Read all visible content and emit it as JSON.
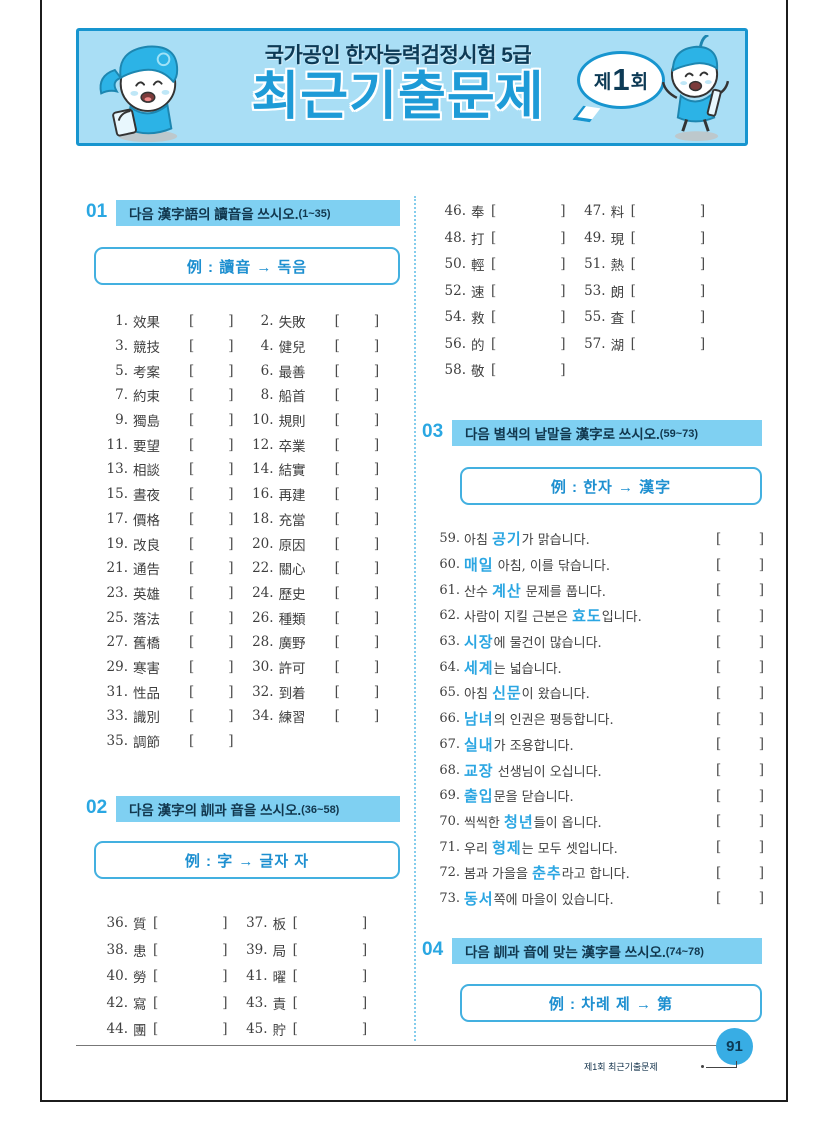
{
  "header": {
    "subtitle": "국가공인 한자능력검정시험 5급",
    "title": "최근기출문제",
    "badge": {
      "pre": "제",
      "num": "1",
      "post": "회"
    }
  },
  "icons": {
    "mascot_left": "running-student-mascot-icon",
    "mascot_right": "jumping-student-mascot-icon"
  },
  "colors": {
    "banner_bg": "#a9def5",
    "banner_border": "#1795cf",
    "title_blue": "#1e9bd7",
    "navy": "#0d3a55",
    "section_band": "#7fd0f2",
    "section_number": "#2aa7e2",
    "example_border": "#43b0e0",
    "example_text": "#1d8fd0",
    "highlight_word": "#2ba6e2",
    "page_circle": "#38ade4"
  },
  "brackets": {
    "open": "[",
    "close": "]"
  },
  "sections": [
    {
      "number": "01",
      "instruction": "다음 漢字語의 讀音을 쓰시오.",
      "range": "(1~35)",
      "example": "例 : 讀音 → 독음"
    },
    {
      "number": "02",
      "instruction": "다음 漢字의 訓과 音을 쓰시오.",
      "range": "(36~58)",
      "example": "例 : 字 → 글자 자"
    },
    {
      "number": "03",
      "instruction": "다음 별색의 낱말을 漢字로 쓰시오.",
      "range": "(59~73)",
      "example": "例 : 한자 → 漢字"
    },
    {
      "number": "04",
      "instruction": "다음 訓과 音에 맞는 漢字를 쓰시오.",
      "range": "(74~78)",
      "example": "例 : 차례 제 → 第"
    }
  ],
  "q1_items": [
    {
      "no": "1.",
      "word": "效果"
    },
    {
      "no": "2.",
      "word": "失敗"
    },
    {
      "no": "3.",
      "word": "競技"
    },
    {
      "no": "4.",
      "word": "健兒"
    },
    {
      "no": "5.",
      "word": "考案"
    },
    {
      "no": "6.",
      "word": "最善"
    },
    {
      "no": "7.",
      "word": "約束"
    },
    {
      "no": "8.",
      "word": "船首"
    },
    {
      "no": "9.",
      "word": "獨島"
    },
    {
      "no": "10.",
      "word": "規則"
    },
    {
      "no": "11.",
      "word": "要望"
    },
    {
      "no": "12.",
      "word": "卒業"
    },
    {
      "no": "13.",
      "word": "相談"
    },
    {
      "no": "14.",
      "word": "結實"
    },
    {
      "no": "15.",
      "word": "晝夜"
    },
    {
      "no": "16.",
      "word": "再建"
    },
    {
      "no": "17.",
      "word": "價格"
    },
    {
      "no": "18.",
      "word": "充當"
    },
    {
      "no": "19.",
      "word": "改良"
    },
    {
      "no": "20.",
      "word": "原因"
    },
    {
      "no": "21.",
      "word": "通告"
    },
    {
      "no": "22.",
      "word": "關心"
    },
    {
      "no": "23.",
      "word": "英雄"
    },
    {
      "no": "24.",
      "word": "歷史"
    },
    {
      "no": "25.",
      "word": "落法"
    },
    {
      "no": "26.",
      "word": "種類"
    },
    {
      "no": "27.",
      "word": "舊橋"
    },
    {
      "no": "28.",
      "word": "廣野"
    },
    {
      "no": "29.",
      "word": "寒害"
    },
    {
      "no": "30.",
      "word": "許可"
    },
    {
      "no": "31.",
      "word": "性品"
    },
    {
      "no": "32.",
      "word": "到着"
    },
    {
      "no": "33.",
      "word": "識別"
    },
    {
      "no": "34.",
      "word": "練習"
    },
    {
      "no": "35.",
      "word": "調節"
    }
  ],
  "q2_left": [
    {
      "no": "36.",
      "word": "質"
    },
    {
      "no": "37.",
      "word": "板"
    },
    {
      "no": "38.",
      "word": "患"
    },
    {
      "no": "39.",
      "word": "局"
    },
    {
      "no": "40.",
      "word": "勞"
    },
    {
      "no": "41.",
      "word": "曜"
    },
    {
      "no": "42.",
      "word": "寫"
    },
    {
      "no": "43.",
      "word": "責"
    },
    {
      "no": "44.",
      "word": "團"
    },
    {
      "no": "45.",
      "word": "貯"
    }
  ],
  "q2_right": [
    {
      "no": "46.",
      "word": "奉"
    },
    {
      "no": "47.",
      "word": "料"
    },
    {
      "no": "48.",
      "word": "打"
    },
    {
      "no": "49.",
      "word": "現"
    },
    {
      "no": "50.",
      "word": "輕"
    },
    {
      "no": "51.",
      "word": "熱"
    },
    {
      "no": "52.",
      "word": "速"
    },
    {
      "no": "53.",
      "word": "朗"
    },
    {
      "no": "54.",
      "word": "救"
    },
    {
      "no": "55.",
      "word": "査"
    },
    {
      "no": "56.",
      "word": "的"
    },
    {
      "no": "57.",
      "word": "湖"
    },
    {
      "no": "58.",
      "word": "敬"
    }
  ],
  "q3_items": [
    {
      "no": "59.",
      "pre": "아침 ",
      "word": "공기",
      "post": "가 맑습니다."
    },
    {
      "no": "60.",
      "pre": "",
      "word": "매일",
      "post": " 아침, 이를 닦습니다."
    },
    {
      "no": "61.",
      "pre": "산수 ",
      "word": "계산",
      "post": " 문제를 풉니다."
    },
    {
      "no": "62.",
      "pre": "사람이 지킬 근본은 ",
      "word": "효도",
      "post": "입니다."
    },
    {
      "no": "63.",
      "pre": "",
      "word": "시장",
      "post": "에 물건이 많습니다."
    },
    {
      "no": "64.",
      "pre": "",
      "word": "세계",
      "post": "는 넓습니다."
    },
    {
      "no": "65.",
      "pre": "아침 ",
      "word": "신문",
      "post": "이 왔습니다."
    },
    {
      "no": "66.",
      "pre": "",
      "word": "남녀",
      "post": "의 인권은 평등합니다."
    },
    {
      "no": "67.",
      "pre": "",
      "word": "실내",
      "post": "가 조용합니다."
    },
    {
      "no": "68.",
      "pre": "",
      "word": "교장",
      "post": " 선생님이 오십니다."
    },
    {
      "no": "69.",
      "pre": "",
      "word": "출입",
      "post": "문을 닫습니다."
    },
    {
      "no": "70.",
      "pre": "씩씩한 ",
      "word": "청년",
      "post": "들이 옵니다."
    },
    {
      "no": "71.",
      "pre": "우리 ",
      "word": "형제",
      "post": "는 모두 셋입니다."
    },
    {
      "no": "72.",
      "pre": "봄과 가을을 ",
      "word": "춘추",
      "post": "라고 합니다."
    },
    {
      "no": "73.",
      "pre": "",
      "word": "동서",
      "post": "쪽에 마을이 있습니다."
    }
  ],
  "footer": {
    "page": "91",
    "caption": "제1회 최근기출문제"
  }
}
